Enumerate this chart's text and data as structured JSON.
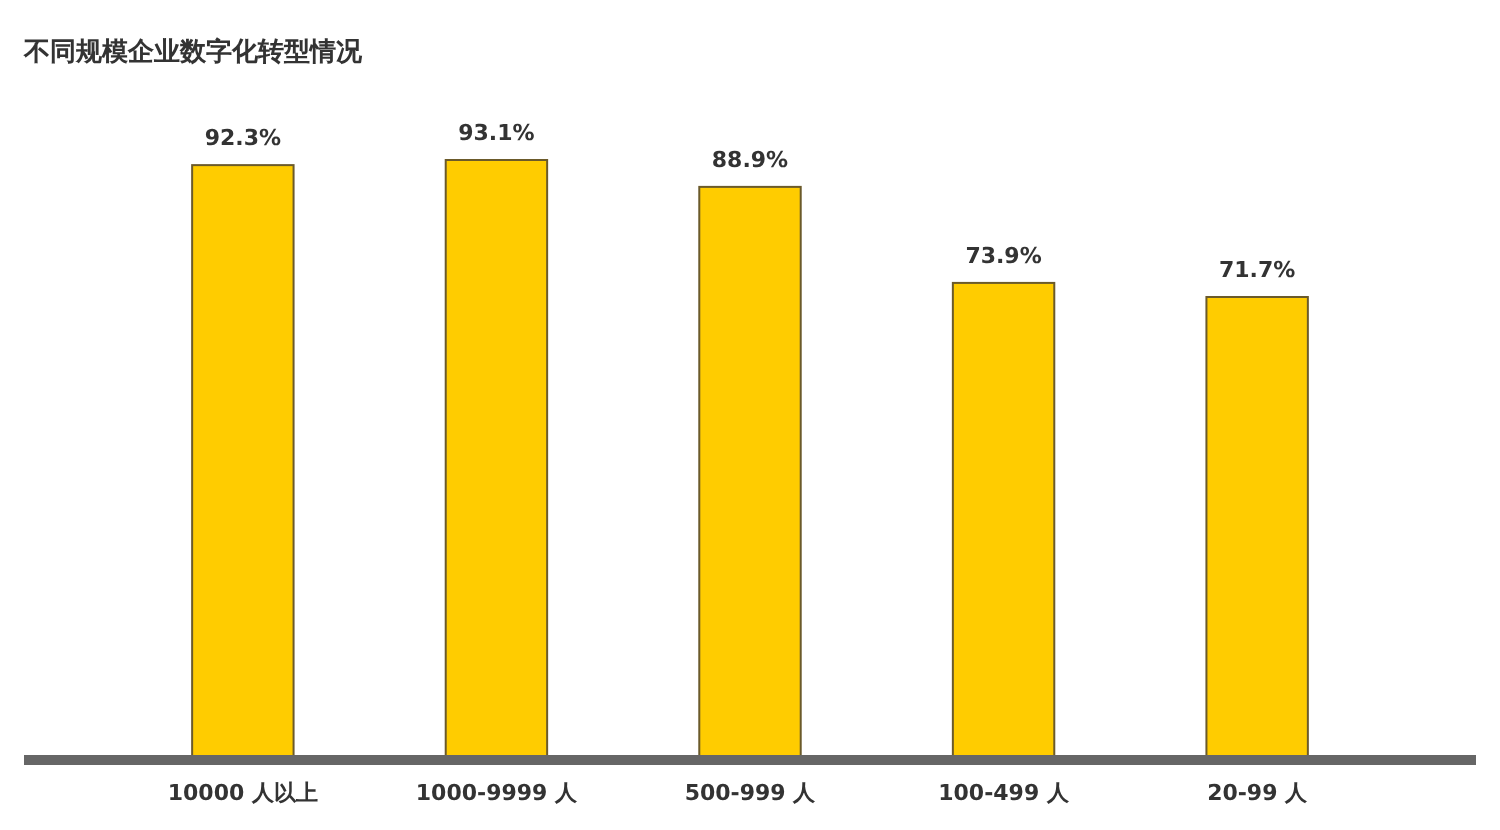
{
  "chart_data": {
    "type": "bar",
    "title": "不同规模企业数字化转型情况",
    "categories": [
      "10000 人以上",
      "1000-9999 人",
      "500-999 人",
      "100-499 人",
      "20-99 人"
    ],
    "values": [
      92.3,
      93.1,
      88.9,
      73.9,
      71.7
    ],
    "value_labels": [
      "92.3%",
      "93.1%",
      "88.9%",
      "73.9%",
      "71.7%"
    ],
    "color": "#ffcc00"
  }
}
